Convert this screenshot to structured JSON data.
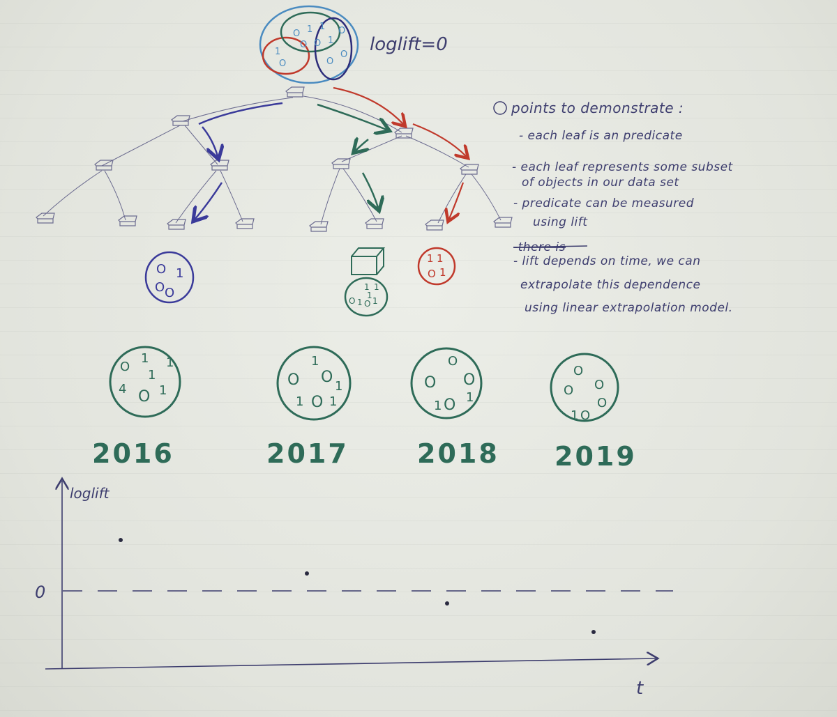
{
  "header": {
    "equation": "loglift=0"
  },
  "notes": {
    "title": "points to demonstrate :",
    "bullets": [
      "- each leaf is an predicate",
      "- each leaf represents some subset",
      "of objects in our data set",
      "- predicate can be measured",
      "using lift",
      "-there is",
      "- lift depends on time, we can",
      "extrapolate this dependence",
      "using linear extrapolation model."
    ]
  },
  "samples": [
    {
      "year": "2016",
      "digits": [
        "O",
        "1",
        "1",
        "1",
        "4",
        "O",
        "1"
      ]
    },
    {
      "year": "2017",
      "digits": [
        "1",
        "O",
        "O",
        "1",
        "1",
        "O",
        "1"
      ]
    },
    {
      "year": "2018",
      "digits": [
        "O",
        "O",
        "O",
        "1",
        "O",
        "1"
      ]
    },
    {
      "year": "2019",
      "digits": [
        "O",
        "O",
        "O",
        "O",
        "1",
        "O"
      ]
    }
  ],
  "leaf_subsets": {
    "blue": [
      "O",
      "1",
      "O",
      "O"
    ],
    "green": [
      "1",
      "1",
      "O",
      "1",
      "O",
      "1",
      "1"
    ],
    "red": [
      "1",
      "1",
      "O",
      "1"
    ]
  },
  "plot": {
    "ylabel": "loglift",
    "xlabel": "t",
    "zero_label": "0"
  },
  "colors": {
    "ink_blue": "#3a3a9a",
    "ink_green": "#2e6b58",
    "ink_red": "#c0392b",
    "pencil": "#6b6b8f"
  }
}
